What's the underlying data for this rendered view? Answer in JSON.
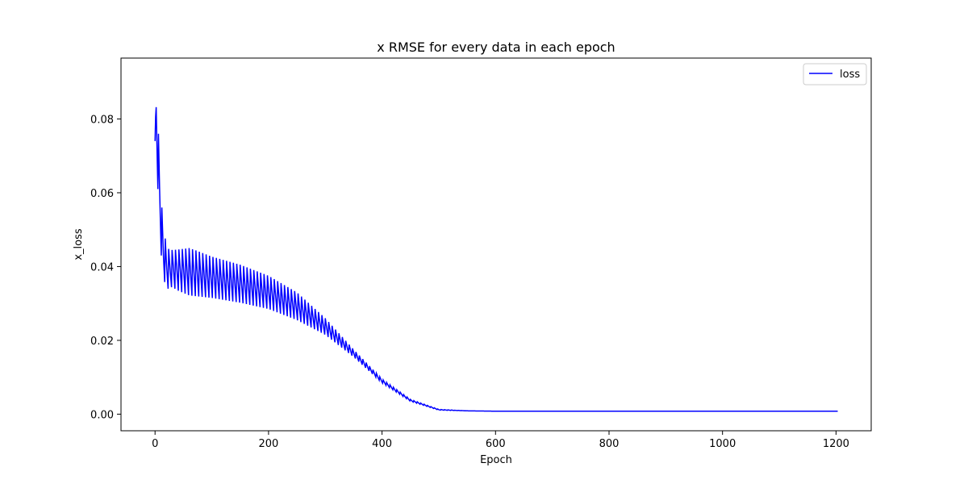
{
  "colors": {
    "series": "#0000ff",
    "axes": "#000000",
    "background": "#ffffff",
    "legend_border": "#cccccc"
  },
  "chart_data": {
    "type": "line",
    "title": "x RMSE for every data in each epoch",
    "xlabel": "Epoch",
    "ylabel": "x_loss",
    "xlim": [
      -60,
      1262
    ],
    "ylim": [
      -0.0045,
      0.0965
    ],
    "xticks": [
      0,
      200,
      400,
      600,
      800,
      1000,
      1200
    ],
    "xtick_labels": [
      "0",
      "200",
      "400",
      "600",
      "800",
      "1000",
      "1200"
    ],
    "yticks": [
      0.0,
      0.02,
      0.04,
      0.06,
      0.08
    ],
    "ytick_labels": [
      "0.00",
      "0.02",
      "0.04",
      "0.06",
      "0.08"
    ],
    "grid": false,
    "legend_position": "top-right",
    "series": [
      {
        "name": "loss",
        "color": "#0000ff",
        "style": "oscillating between upper and lower envelopes",
        "cycle_length": 6,
        "n_points": 1204,
        "upper_envelope": {
          "x": [
            0,
            2,
            5,
            8,
            11,
            15,
            20,
            25,
            30,
            40,
            60,
            70,
            100,
            150,
            200,
            250,
            300,
            350,
            400,
            450,
            500,
            550,
            600,
            700,
            800,
            1000,
            1203
          ],
          "y": [
            0.074,
            0.092,
            0.08,
            0.068,
            0.058,
            0.05,
            0.046,
            0.0445,
            0.0445,
            0.0446,
            0.045,
            0.0445,
            0.0427,
            0.0405,
            0.0375,
            0.033,
            0.026,
            0.0175,
            0.0095,
            0.004,
            0.0013,
            0.0009,
            0.0008,
            0.0008,
            0.0008,
            0.0008,
            0.0008
          ]
        },
        "lower_envelope": {
          "x": [
            0,
            2,
            5,
            8,
            11,
            15,
            20,
            25,
            30,
            40,
            60,
            70,
            100,
            150,
            200,
            250,
            300,
            350,
            400,
            450,
            500,
            550,
            600,
            700,
            800,
            1000,
            1203
          ],
          "y": [
            0.072,
            0.07,
            0.061,
            0.051,
            0.043,
            0.037,
            0.034,
            0.034,
            0.0345,
            0.0335,
            0.0322,
            0.032,
            0.0315,
            0.0302,
            0.0285,
            0.0255,
            0.0215,
            0.0155,
            0.0085,
            0.0035,
            0.0011,
            0.0009,
            0.0008,
            0.0008,
            0.0008,
            0.0008,
            0.0008
          ]
        }
      }
    ]
  }
}
